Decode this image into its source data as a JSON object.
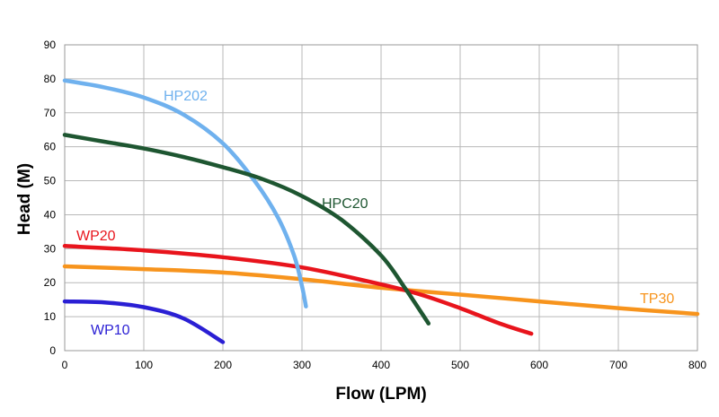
{
  "chart_data": {
    "type": "line",
    "title": "",
    "xlabel": "Flow (LPM)",
    "ylabel": "Head (M)",
    "xlim": [
      0,
      800
    ],
    "ylim": [
      0,
      90
    ],
    "x_ticks": [
      0,
      100,
      200,
      300,
      400,
      500,
      600,
      700,
      800
    ],
    "y_ticks": [
      0,
      10,
      20,
      30,
      40,
      50,
      60,
      70,
      80,
      90
    ],
    "grid": true,
    "legend": "none (labels placed next to each curve)",
    "series": [
      {
        "name": "HP202",
        "color": "#6fb1ee",
        "points": [
          [
            0,
            79.5
          ],
          [
            50,
            77.5
          ],
          [
            100,
            74.5
          ],
          [
            150,
            69.5
          ],
          [
            200,
            61
          ],
          [
            240,
            50
          ],
          [
            270,
            39
          ],
          [
            290,
            28
          ],
          [
            300,
            19
          ],
          [
            305,
            13
          ]
        ]
      },
      {
        "name": "HPC20",
        "color": "#1e5631",
        "points": [
          [
            0,
            63.5
          ],
          [
            50,
            61.5
          ],
          [
            100,
            59.5
          ],
          [
            150,
            57
          ],
          [
            200,
            54
          ],
          [
            250,
            50.5
          ],
          [
            300,
            45.5
          ],
          [
            350,
            38.5
          ],
          [
            400,
            28
          ],
          [
            430,
            18.5
          ],
          [
            460,
            8
          ]
        ]
      },
      {
        "name": "WP20",
        "color": "#e8141c",
        "points": [
          [
            0,
            30.8
          ],
          [
            100,
            29.5
          ],
          [
            200,
            27.5
          ],
          [
            300,
            24.5
          ],
          [
            400,
            19.5
          ],
          [
            450,
            16.5
          ],
          [
            500,
            12.5
          ],
          [
            550,
            8
          ],
          [
            590,
            5
          ]
        ]
      },
      {
        "name": "TP30",
        "color": "#f7941d",
        "points": [
          [
            0,
            24.8
          ],
          [
            100,
            24
          ],
          [
            200,
            23
          ],
          [
            300,
            21
          ],
          [
            400,
            18.5
          ],
          [
            500,
            16.5
          ],
          [
            600,
            14.5
          ],
          [
            700,
            12.5
          ],
          [
            800,
            10.8
          ]
        ]
      },
      {
        "name": "WP10",
        "color": "#2a1fd4",
        "points": [
          [
            0,
            14.5
          ],
          [
            50,
            14.2
          ],
          [
            100,
            12.8
          ],
          [
            150,
            9.5
          ],
          [
            200,
            2.5
          ]
        ]
      }
    ]
  }
}
